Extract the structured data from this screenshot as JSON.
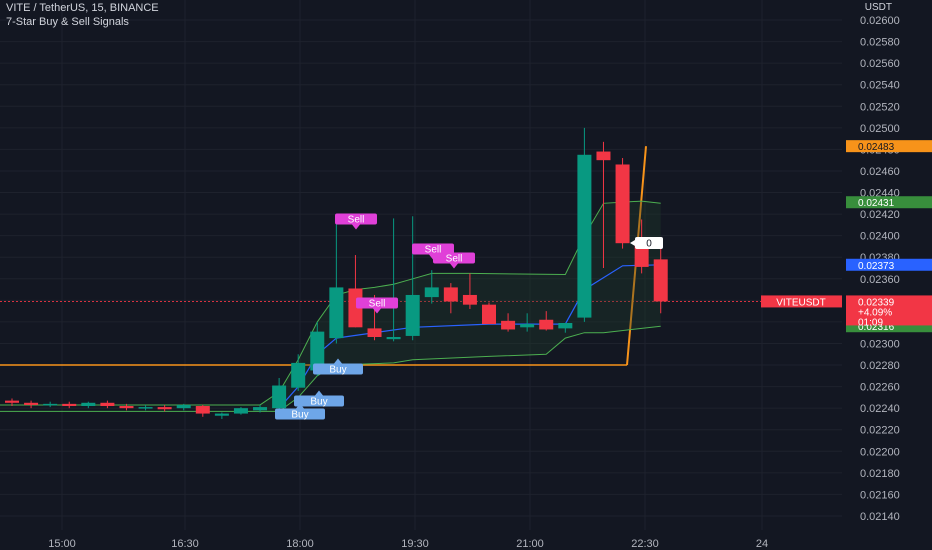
{
  "header": {
    "title": "VITE / TetherUS, 15, BINANCE",
    "indicator": "7-Star Buy & Sell Signals"
  },
  "currency": "USDT",
  "colors": {
    "bg": "#131722",
    "grid": "#1e222d",
    "up": "#089981",
    "down": "#f23645",
    "buy": "#6ea6e8",
    "sell": "#e040d8",
    "orange": "#f7931a",
    "blue": "#2962ff",
    "green": "#4caf50"
  },
  "price_badges": {
    "orange": "0.02483",
    "green_top": "0.02431",
    "blue": "0.02373",
    "symbol": "VITEUSDT",
    "last": "0.02339",
    "change": "+4.09%",
    "countdown": "01:09",
    "green_bottom": "0.02316",
    "label_zero": "0"
  },
  "chart_data": {
    "type": "candlestick",
    "symbol": "VITE / TetherUS",
    "interval": "15",
    "exchange": "BINANCE",
    "y_ticks": [
      "0.02600",
      "0.02580",
      "0.02560",
      "0.02540",
      "0.02520",
      "0.02500",
      "0.02480",
      "0.02460",
      "0.02440",
      "0.02420",
      "0.02400",
      "0.02380",
      "0.02360",
      "0.02340",
      "0.02320",
      "0.02300",
      "0.02280",
      "0.02260",
      "0.02240",
      "0.02220",
      "0.02200",
      "0.02180",
      "0.02160",
      "0.02140"
    ],
    "ylim": [
      0.0213,
      0.0261
    ],
    "x_ticks": [
      "15:00",
      "16:30",
      "18:00",
      "19:30",
      "21:00",
      "22:30",
      "24"
    ],
    "candles": [
      {
        "t": "14:15",
        "o": 0.02247,
        "h": 0.02249,
        "l": 0.02242,
        "c": 0.02245
      },
      {
        "t": "14:30",
        "o": 0.02245,
        "h": 0.02247,
        "l": 0.0224,
        "c": 0.02243
      },
      {
        "t": "14:45",
        "o": 0.02243,
        "h": 0.02246,
        "l": 0.02241,
        "c": 0.02244
      },
      {
        "t": "15:00",
        "o": 0.02244,
        "h": 0.02246,
        "l": 0.0224,
        "c": 0.02242
      },
      {
        "t": "15:15",
        "o": 0.02242,
        "h": 0.02246,
        "l": 0.0224,
        "c": 0.02245
      },
      {
        "t": "15:30",
        "o": 0.02245,
        "h": 0.02247,
        "l": 0.0224,
        "c": 0.02242
      },
      {
        "t": "15:45",
        "o": 0.02242,
        "h": 0.02244,
        "l": 0.02238,
        "c": 0.0224
      },
      {
        "t": "16:00",
        "o": 0.0224,
        "h": 0.02243,
        "l": 0.02238,
        "c": 0.02241
      },
      {
        "t": "16:15",
        "o": 0.02241,
        "h": 0.02243,
        "l": 0.02237,
        "c": 0.02239
      },
      {
        "t": "16:30",
        "o": 0.0224,
        "h": 0.02244,
        "l": 0.02238,
        "c": 0.02243
      },
      {
        "t": "16:45",
        "o": 0.02242,
        "h": 0.02243,
        "l": 0.02232,
        "c": 0.02235
      },
      {
        "t": "17:00",
        "o": 0.02233,
        "h": 0.02236,
        "l": 0.0223,
        "c": 0.02235
      },
      {
        "t": "17:15",
        "o": 0.02235,
        "h": 0.02241,
        "l": 0.02234,
        "c": 0.0224
      },
      {
        "t": "17:30",
        "o": 0.02238,
        "h": 0.02243,
        "l": 0.02236,
        "c": 0.02241
      },
      {
        "t": "17:45",
        "o": 0.0224,
        "h": 0.02268,
        "l": 0.02232,
        "c": 0.02261
      },
      {
        "t": "18:00",
        "o": 0.02259,
        "h": 0.0229,
        "l": 0.02256,
        "c": 0.02282
      },
      {
        "t": "18:15",
        "o": 0.02275,
        "h": 0.0232,
        "l": 0.0227,
        "c": 0.02311
      },
      {
        "t": "18:30",
        "o": 0.02305,
        "h": 0.02414,
        "l": 0.023,
        "c": 0.02352
      },
      {
        "t": "18:45",
        "o": 0.02351,
        "h": 0.02382,
        "l": 0.02315,
        "c": 0.02315
      },
      {
        "t": "19:00",
        "o": 0.02314,
        "h": 0.02345,
        "l": 0.02303,
        "c": 0.02306
      },
      {
        "t": "19:15",
        "o": 0.02304,
        "h": 0.02416,
        "l": 0.02302,
        "c": 0.02306
      },
      {
        "t": "19:30",
        "o": 0.02307,
        "h": 0.02418,
        "l": 0.02303,
        "c": 0.02345
      },
      {
        "t": "19:45",
        "o": 0.02343,
        "h": 0.02368,
        "l": 0.02337,
        "c": 0.02352
      },
      {
        "t": "20:00",
        "o": 0.02352,
        "h": 0.02356,
        "l": 0.02328,
        "c": 0.02339
      },
      {
        "t": "20:15",
        "o": 0.02345,
        "h": 0.02365,
        "l": 0.02332,
        "c": 0.02336
      },
      {
        "t": "20:30",
        "o": 0.02336,
        "h": 0.02338,
        "l": 0.0232,
        "c": 0.02318
      },
      {
        "t": "20:45",
        "o": 0.02321,
        "h": 0.02328,
        "l": 0.02311,
        "c": 0.02313
      },
      {
        "t": "21:00",
        "o": 0.02315,
        "h": 0.02328,
        "l": 0.02311,
        "c": 0.02318
      },
      {
        "t": "21:15",
        "o": 0.02322,
        "h": 0.0233,
        "l": 0.02312,
        "c": 0.02313
      },
      {
        "t": "21:30",
        "o": 0.02314,
        "h": 0.02318,
        "l": 0.0231,
        "c": 0.02319
      },
      {
        "t": "21:45",
        "o": 0.02324,
        "h": 0.025,
        "l": 0.0232,
        "c": 0.02475
      },
      {
        "t": "22:00",
        "o": 0.02478,
        "h": 0.02487,
        "l": 0.0237,
        "c": 0.0247
      },
      {
        "t": "22:15",
        "o": 0.02466,
        "h": 0.02472,
        "l": 0.02388,
        "c": 0.02393
      },
      {
        "t": "22:30",
        "o": 0.02396,
        "h": 0.02415,
        "l": 0.02365,
        "c": 0.02371
      },
      {
        "t": "22:45",
        "o": 0.02378,
        "h": 0.02392,
        "l": 0.02328,
        "c": 0.02339
      }
    ],
    "signals": [
      {
        "type": "Sell",
        "at": "18:45"
      },
      {
        "type": "Sell",
        "at": "19:15"
      },
      {
        "type": "Sell",
        "at": "20:15"
      },
      {
        "type": "Sell",
        "at": "20:30"
      },
      {
        "type": "Buy",
        "at": "17:45"
      },
      {
        "type": "Buy",
        "at": "18:00"
      },
      {
        "type": "Buy",
        "at": "18:15"
      }
    ],
    "horizontal_line": 0.0228,
    "orange_ray_end": 0.02483,
    "grid": true,
    "labels": {
      "sell": "Sell",
      "buy": "Buy"
    }
  }
}
